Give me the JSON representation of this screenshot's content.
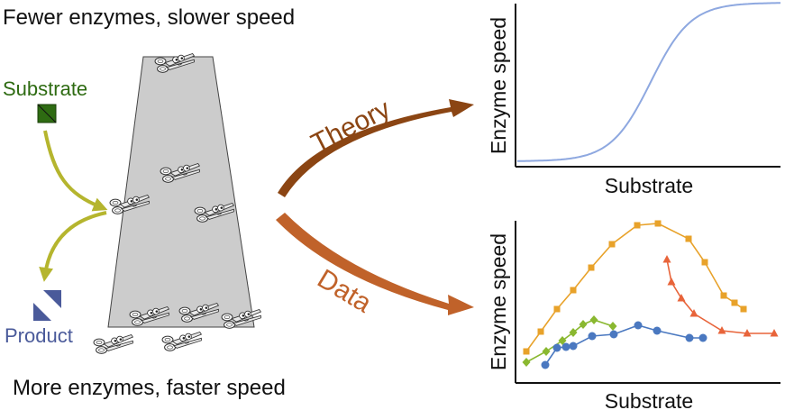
{
  "top_caption": "Fewer enzymes, slower speed",
  "bottom_caption": "More enzymes, faster speed",
  "substrate_label": "Substrate",
  "product_label": "Product",
  "theory_label": "Theory",
  "data_label": "Data",
  "colors": {
    "substrate": "#2e6b12",
    "product": "#4a5a9a",
    "green_arrow": "#b5b52e",
    "brown_arrow": "#8b4513",
    "orange_arrow": "#c0622a",
    "column": "#cccccc",
    "curve": "#8ea8e0"
  },
  "icons": [
    "scissors-icon",
    "substrate-square-icon",
    "product-triangles-icon"
  ],
  "chart_data": [
    {
      "type": "line",
      "xlabel": "Substrate",
      "ylabel": "Enzyme speed",
      "shape": "sigmoid"
    },
    {
      "type": "scatter",
      "xlabel": "Substrate",
      "ylabel": "Enzyme speed",
      "series": [
        {
          "color": "#e8a22a",
          "marker": "square",
          "values": [
            [
              584,
              390
            ],
            [
              600,
              368
            ],
            [
              618,
              343
            ],
            [
              636,
              322
            ],
            [
              656,
              297
            ],
            [
              679,
              271
            ],
            [
              707,
              250
            ],
            [
              730,
              248
            ],
            [
              764,
              265
            ],
            [
              782,
              291
            ],
            [
              803,
              328
            ],
            [
              815,
              336
            ],
            [
              825,
              343
            ]
          ]
        },
        {
          "color": "#e8643a",
          "marker": "triangle",
          "values": [
            [
              740,
              288
            ],
            [
              745,
              313
            ],
            [
              756,
              331
            ],
            [
              770,
              348
            ],
            [
              801,
              367
            ],
            [
              829,
              370
            ],
            [
              859,
              370
            ]
          ]
        },
        {
          "color": "#8ab830",
          "marker": "diamond",
          "values": [
            [
              584,
              402
            ],
            [
              606,
              390
            ],
            [
              624,
              378
            ],
            [
              636,
              369
            ],
            [
              647,
              360
            ],
            [
              659,
              355
            ],
            [
              680,
              362
            ]
          ]
        },
        {
          "color": "#4a78c0",
          "marker": "circle",
          "values": [
            [
              605,
              405
            ],
            [
              618,
              386
            ],
            [
              628,
              385
            ],
            [
              636,
              384
            ],
            [
              657,
              373
            ],
            [
              681,
              371
            ],
            [
              708,
              361
            ],
            [
              729,
              367
            ],
            [
              765,
              375
            ],
            [
              780,
              375
            ]
          ]
        }
      ]
    }
  ]
}
